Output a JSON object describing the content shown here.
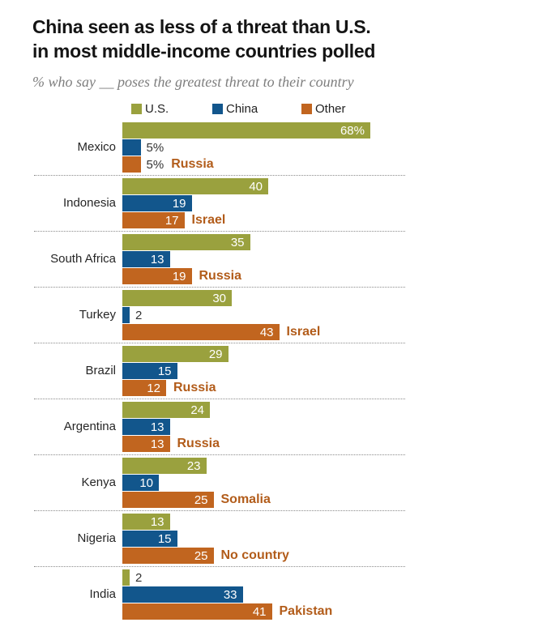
{
  "header": {
    "title_line1": "China seen as less of a threat than U.S.",
    "title_line2": "in most middle-income countries polled",
    "subtitle": "% who say __ poses the greatest threat to their country"
  },
  "colors": {
    "us": "#9AA13E",
    "china": "#12568C",
    "other": "#C1651F",
    "other_target_text": "#B25C1A",
    "value_inside": "#FFFFFF",
    "value_outside": "#333333",
    "separator": "#8B8B8B",
    "title_text": "#141414",
    "subtitle_text": "#7E7E7E"
  },
  "legend": {
    "items": [
      {
        "label": "U.S.",
        "color_key": "us"
      },
      {
        "label": "China",
        "color_key": "china"
      },
      {
        "label": "Other",
        "color_key": "other"
      }
    ]
  },
  "chart_data": {
    "type": "bar",
    "orientation": "horizontal",
    "title": "China seen as less of a threat than U.S. in most middle-income countries polled",
    "subtitle": "% who say __ poses the greatest threat to their country",
    "unit": "percent",
    "value_range": [
      0,
      68
    ],
    "grid": false,
    "legend_position": "top",
    "series_names": [
      "U.S.",
      "China",
      "Other"
    ],
    "rows": [
      {
        "country": "Mexico",
        "values": {
          "us": 68,
          "china": 5,
          "other": 5
        },
        "labels": {
          "us": "68%",
          "china": "5%",
          "other": "5%"
        },
        "other_target": "Russia"
      },
      {
        "country": "Indonesia",
        "values": {
          "us": 40,
          "china": 19,
          "other": 17
        },
        "labels": {
          "us": "40",
          "china": "19",
          "other": "17"
        },
        "other_target": "Israel"
      },
      {
        "country": "South Africa",
        "values": {
          "us": 35,
          "china": 13,
          "other": 19
        },
        "labels": {
          "us": "35",
          "china": "13",
          "other": "19"
        },
        "other_target": "Russia"
      },
      {
        "country": "Turkey",
        "values": {
          "us": 30,
          "china": 2,
          "other": 43
        },
        "labels": {
          "us": "30",
          "china": "2",
          "other": "43"
        },
        "other_target": "Israel"
      },
      {
        "country": "Brazil",
        "values": {
          "us": 29,
          "china": 15,
          "other": 12
        },
        "labels": {
          "us": "29",
          "china": "15",
          "other": "12"
        },
        "other_target": "Russia"
      },
      {
        "country": "Argentina",
        "values": {
          "us": 24,
          "china": 13,
          "other": 13
        },
        "labels": {
          "us": "24",
          "china": "13",
          "other": "13"
        },
        "other_target": "Russia"
      },
      {
        "country": "Kenya",
        "values": {
          "us": 23,
          "china": 10,
          "other": 25
        },
        "labels": {
          "us": "23",
          "china": "10",
          "other": "25"
        },
        "other_target": "Somalia"
      },
      {
        "country": "Nigeria",
        "values": {
          "us": 13,
          "china": 15,
          "other": 25
        },
        "labels": {
          "us": "13",
          "china": "15",
          "other": "25"
        },
        "other_target": "No country"
      },
      {
        "country": "India",
        "values": {
          "us": 2,
          "china": 33,
          "other": 41
        },
        "labels": {
          "us": "2",
          "china": "33",
          "other": "41"
        },
        "other_target": "Pakistan"
      }
    ]
  }
}
